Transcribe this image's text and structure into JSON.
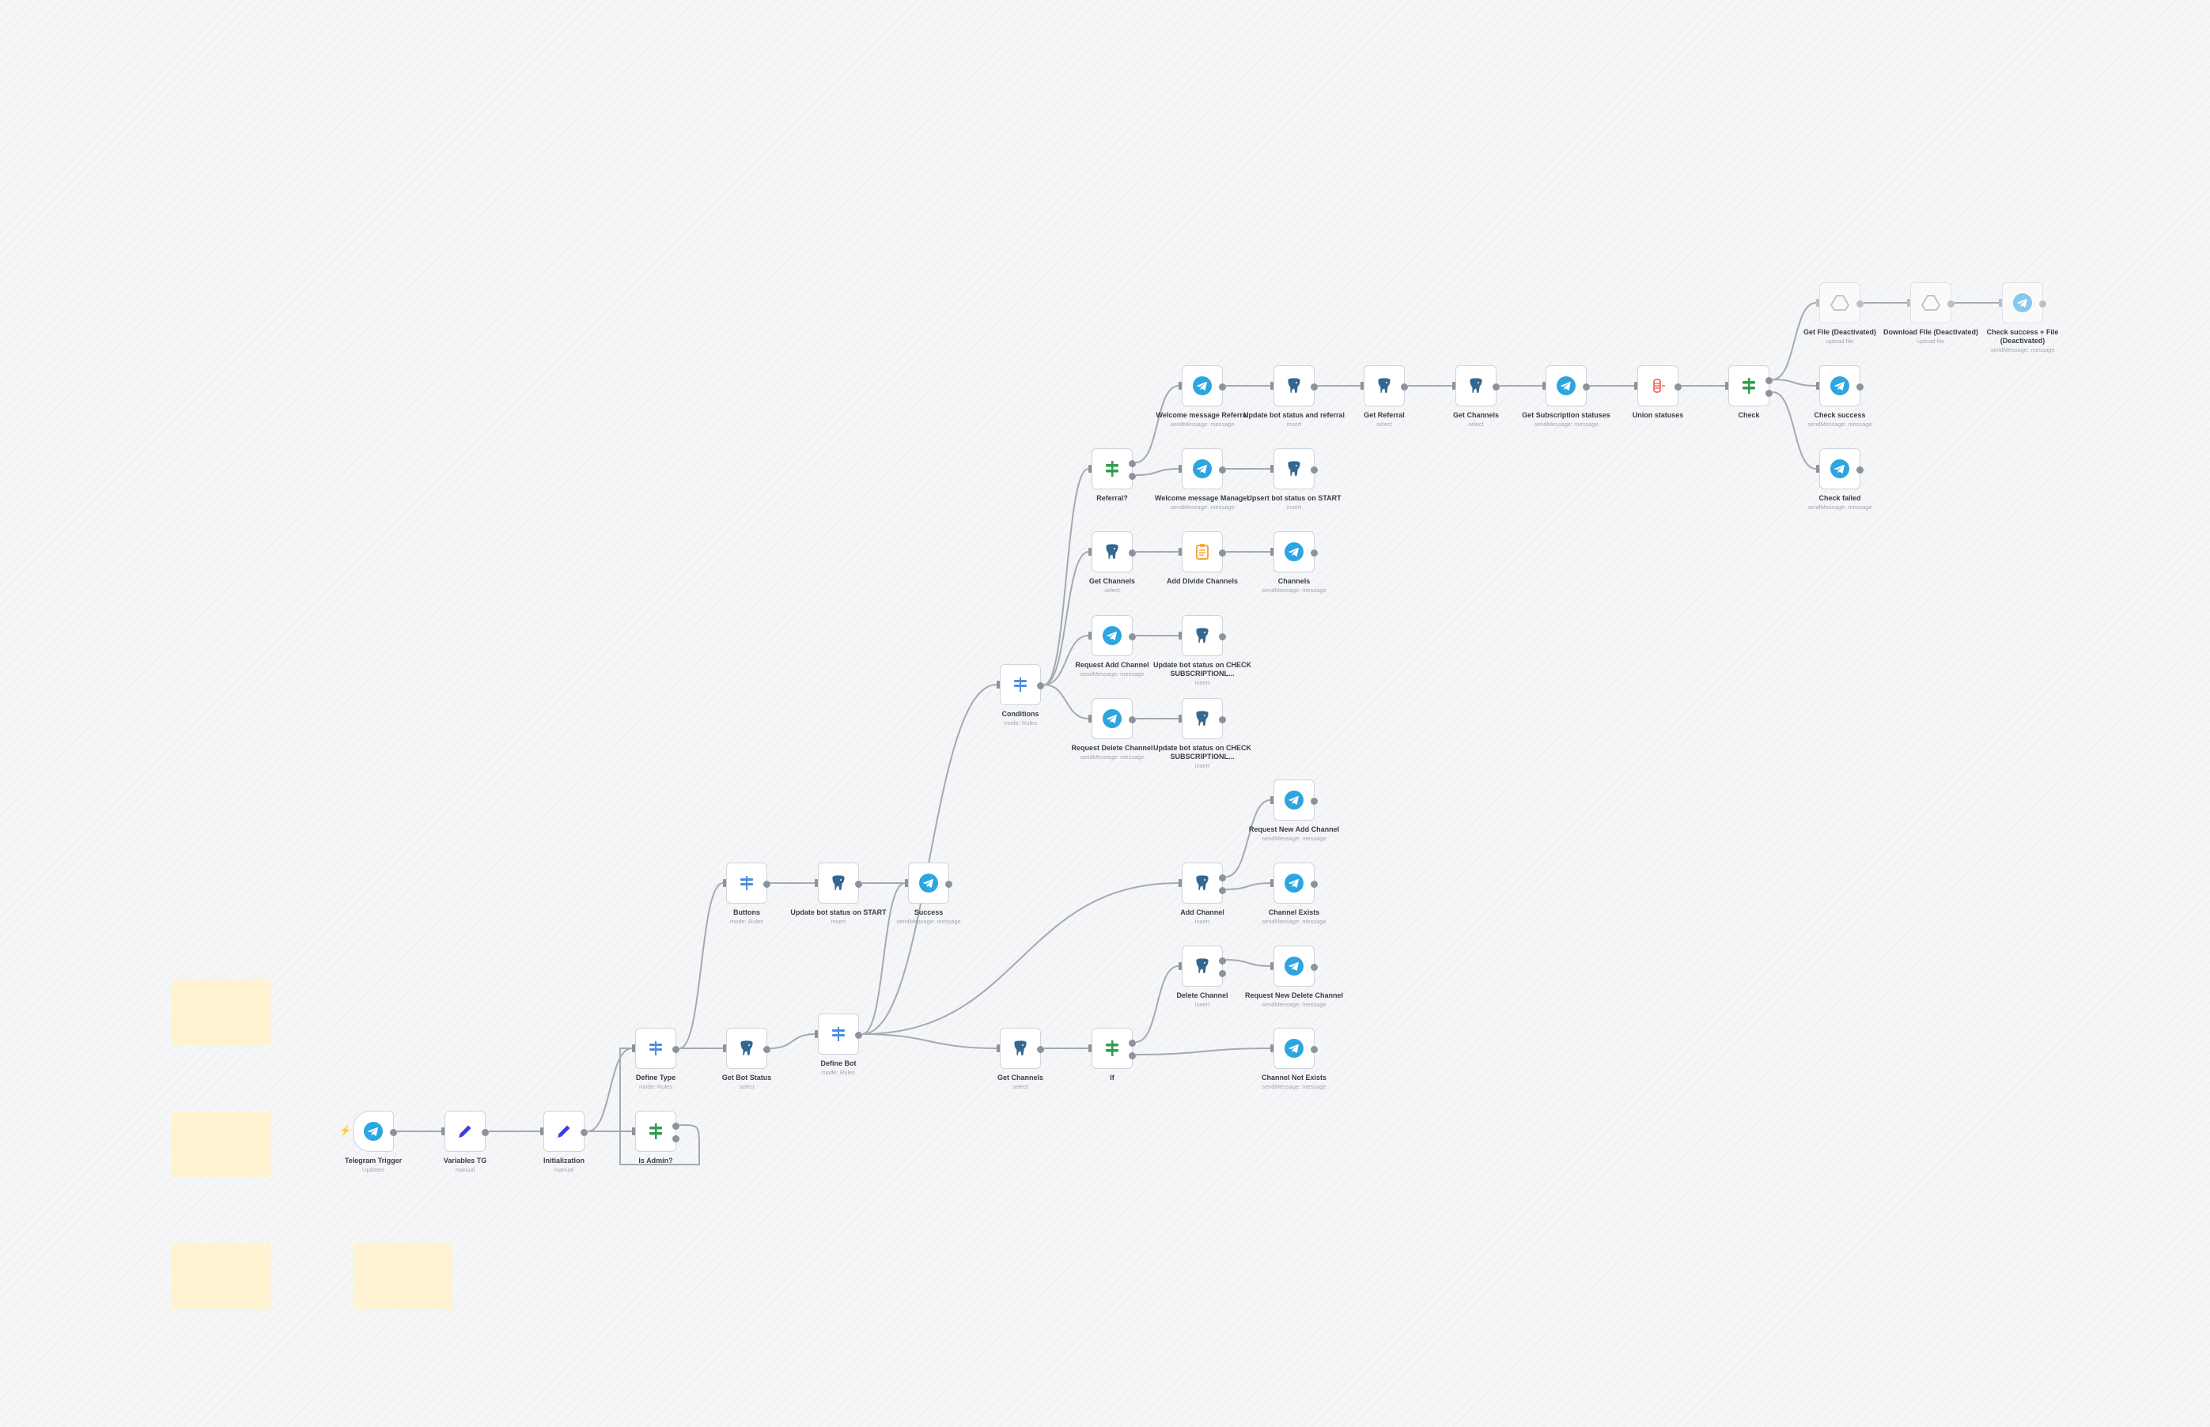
{
  "canvas": {
    "background": "#f5f6f8",
    "sticky_color": "#fff3d1",
    "edge_color": "#a5a9b0"
  },
  "icon_colors": {
    "telegram": "#2ca5e0",
    "postgres": "#336791",
    "switch": "#4a90e2",
    "if": "#2e9e4d",
    "set": "#3b3fe0",
    "code": "#f3a93b",
    "merge": "#ef6b5c",
    "drive": "#9aa0a8"
  },
  "nodes": {
    "n1": {
      "label": "Telegram Trigger",
      "subtitle": "Updates",
      "icon": "telegram-icon"
    },
    "n2": {
      "label": "Variables TG",
      "subtitle": "manual",
      "icon": "pencil-icon"
    },
    "n3": {
      "label": "Initialization",
      "subtitle": "manual",
      "icon": "pencil-icon"
    },
    "n4": {
      "label": "Is Admin?",
      "subtitle": "",
      "icon": "if-icon"
    },
    "n5": {
      "label": "Define Type",
      "subtitle": "mode: Rules",
      "icon": "switch-icon"
    },
    "n6": {
      "label": "Get Bot Status",
      "subtitle": "select",
      "icon": "postgres-icon"
    },
    "n7": {
      "label": "Define Bot",
      "subtitle": "mode: Rules",
      "icon": "switch-icon"
    },
    "n8": {
      "label": "Buttons",
      "subtitle": "mode: Rules",
      "icon": "switch-icon"
    },
    "n9": {
      "label": "Update bot status on START",
      "subtitle": "insert",
      "icon": "postgres-icon"
    },
    "n10": {
      "label": "Success",
      "subtitle": "sendMessage: message",
      "icon": "telegram-icon"
    },
    "n11": {
      "label": "Conditions",
      "subtitle": "mode: Rules",
      "icon": "switch-icon"
    },
    "n12": {
      "label": "Referral?",
      "subtitle": "",
      "icon": "if-icon"
    },
    "n13": {
      "label": "Welcome message Referral",
      "subtitle": "sendMessage: message",
      "icon": "telegram-icon"
    },
    "n14": {
      "label": "Update bot status and referral",
      "subtitle": "insert",
      "icon": "postgres-icon"
    },
    "n15": {
      "label": "Get Referral",
      "subtitle": "select",
      "icon": "postgres-icon"
    },
    "n16": {
      "label": "Get Channels",
      "subtitle": "select",
      "icon": "postgres-icon"
    },
    "n17": {
      "label": "Get Subscription statuses",
      "subtitle": "sendMessage: message",
      "icon": "telegram-icon"
    },
    "n18": {
      "label": "Union statuses",
      "subtitle": "",
      "icon": "merge-icon"
    },
    "n19": {
      "label": "Check",
      "subtitle": "",
      "icon": "if-icon"
    },
    "n20": {
      "label": "Check success",
      "subtitle": "sendMessage: message",
      "icon": "telegram-icon"
    },
    "n21": {
      "label": "Check failed",
      "subtitle": "sendMessage: message",
      "icon": "telegram-icon"
    },
    "n22": {
      "label": "Get File (Deactivated)",
      "subtitle": "upload file",
      "icon": "drive-icon",
      "disabled": true
    },
    "n23": {
      "label": "Download File (Deactivated)",
      "subtitle": "upload file",
      "icon": "drive-icon",
      "disabled": true
    },
    "n24": {
      "label": "Check success + File (Deactivated)",
      "subtitle": "sendMessage: message",
      "icon": "telegram-icon",
      "disabled": true
    },
    "n25": {
      "label": "Welcome message Manager",
      "subtitle": "sendMessage: message",
      "icon": "telegram-icon"
    },
    "n26": {
      "label": "Upsert bot status on START",
      "subtitle": "insert",
      "icon": "postgres-icon"
    },
    "n27": {
      "label": "Get Channels",
      "subtitle": "select",
      "icon": "postgres-icon"
    },
    "n28": {
      "label": "Add Divide Channels",
      "subtitle": "",
      "icon": "clipboard-icon"
    },
    "n29": {
      "label": "Channels",
      "subtitle": "sendMessage: message",
      "icon": "telegram-icon"
    },
    "n30": {
      "label": "Request Add Channel",
      "subtitle": "sendMessage: message",
      "icon": "telegram-icon"
    },
    "n31": {
      "label": "Update bot status on CHECK SUBSCRIPTIONL...",
      "subtitle": "insert",
      "icon": "postgres-icon"
    },
    "n32": {
      "label": "Request Delete Channel",
      "subtitle": "sendMessage: message",
      "icon": "telegram-icon"
    },
    "n33": {
      "label": "Update bot status on CHECK SUBSCRIPTIONL...",
      "subtitle": "insert",
      "icon": "postgres-icon"
    },
    "n34": {
      "label": "Request New Add Channel",
      "subtitle": "sendMessage: message",
      "icon": "telegram-icon"
    },
    "n35": {
      "label": "Add Channel",
      "subtitle": "insert",
      "icon": "postgres-icon"
    },
    "n36": {
      "label": "Channel Exists",
      "subtitle": "sendMessage: message",
      "icon": "telegram-icon"
    },
    "n37": {
      "label": "Delete Channel",
      "subtitle": "insert",
      "icon": "postgres-icon"
    },
    "n38": {
      "label": "Request New Delete Channel",
      "subtitle": "sendMessage: message",
      "icon": "telegram-icon"
    },
    "n39": {
      "label": "Get Channels",
      "subtitle": "select",
      "icon": "postgres-icon"
    },
    "n40": {
      "label": "If",
      "subtitle": "",
      "icon": "if-icon"
    },
    "n41": {
      "label": "Channel Not Exists",
      "subtitle": "sendMessage: message",
      "icon": "telegram-icon"
    }
  },
  "edges": [
    [
      "n1",
      "n2",
      0
    ],
    [
      "n2",
      "n3",
      0
    ],
    [
      "n3",
      "n4",
      0
    ],
    [
      "n3",
      "n5",
      0
    ],
    [
      "n4",
      "n5",
      0
    ],
    [
      "n5",
      "n8",
      0
    ],
    [
      "n5",
      "n6",
      1
    ],
    [
      "n6",
      "n7",
      0
    ],
    [
      "n8",
      "n9",
      0
    ],
    [
      "n9",
      "n10",
      0
    ],
    [
      "n7",
      "n10",
      0
    ],
    [
      "n7",
      "n11",
      0
    ],
    [
      "n7",
      "n35",
      1
    ],
    [
      "n7",
      "n39",
      1
    ],
    [
      "n11",
      "n12",
      0
    ],
    [
      "n11",
      "n27",
      0
    ],
    [
      "n11",
      "n30",
      0
    ],
    [
      "n11",
      "n32",
      1
    ],
    [
      "n12",
      "n13",
      0
    ],
    [
      "n12",
      "n25",
      1
    ],
    [
      "n13",
      "n14",
      0
    ],
    [
      "n14",
      "n15",
      0
    ],
    [
      "n15",
      "n16",
      0
    ],
    [
      "n16",
      "n17",
      0
    ],
    [
      "n17",
      "n18",
      0
    ],
    [
      "n18",
      "n19",
      0
    ],
    [
      "n19",
      "n20",
      0
    ],
    [
      "n19",
      "n21",
      1
    ],
    [
      "n19",
      "n22",
      0
    ],
    [
      "n22",
      "n23",
      0
    ],
    [
      "n23",
      "n24",
      0
    ],
    [
      "n25",
      "n26",
      0
    ],
    [
      "n27",
      "n28",
      0
    ],
    [
      "n28",
      "n29",
      0
    ],
    [
      "n30",
      "n31",
      0
    ],
    [
      "n32",
      "n33",
      0
    ],
    [
      "n35",
      "n34",
      0
    ],
    [
      "n35",
      "n36",
      1
    ],
    [
      "n39",
      "n40",
      0
    ],
    [
      "n40",
      "n37",
      0
    ],
    [
      "n40",
      "n41",
      1
    ],
    [
      "n37",
      "n38",
      0
    ]
  ]
}
